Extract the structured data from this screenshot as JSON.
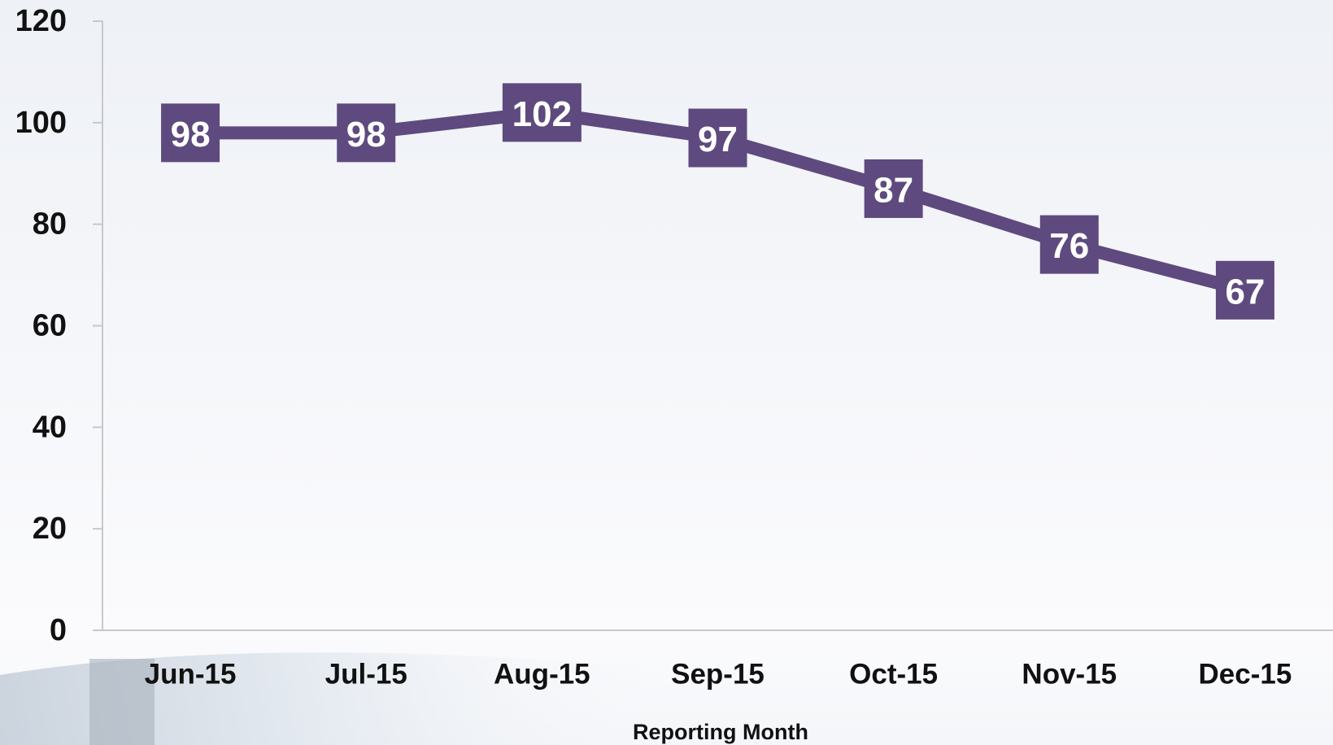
{
  "chart_data": {
    "type": "line",
    "categories": [
      "Jun-15",
      "Jul-15",
      "Aug-15",
      "Sep-15",
      "Oct-15",
      "Nov-15",
      "Dec-15"
    ],
    "series": [
      {
        "color": "#5e4a7e",
        "values": [
          98,
          98,
          102,
          97,
          87,
          76,
          67
        ]
      }
    ],
    "x_label": "Reporting Month",
    "ylim": [
      0,
      120
    ],
    "yticks": [
      0,
      20,
      40,
      60,
      80,
      100,
      120
    ]
  }
}
